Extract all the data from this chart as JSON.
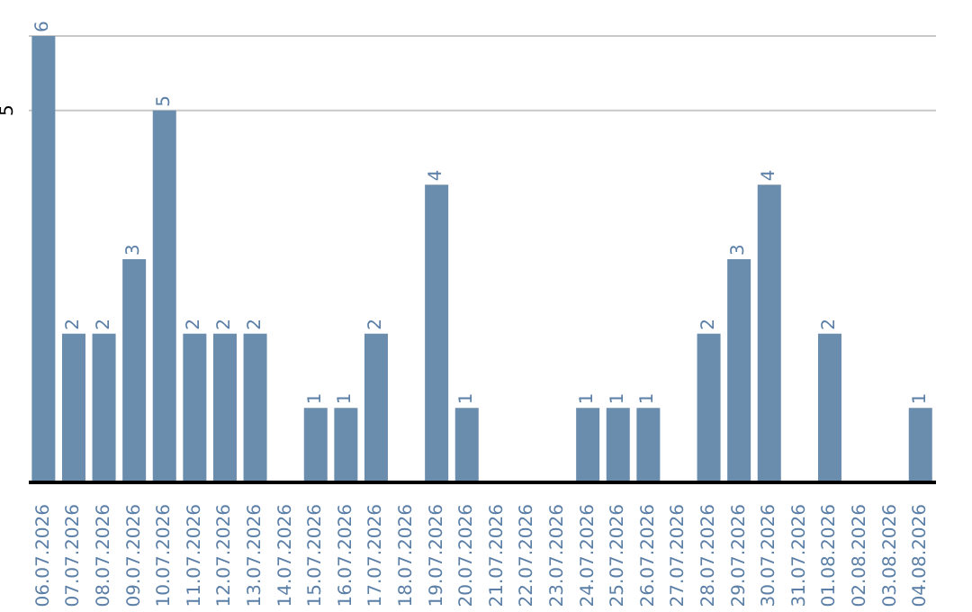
{
  "chart_data": {
    "type": "bar",
    "categories": [
      "06.07.2026",
      "07.07.2026",
      "08.07.2026",
      "09.07.2026",
      "10.07.2026",
      "11.07.2026",
      "12.07.2026",
      "13.07.2026",
      "14.07.2026",
      "15.07.2026",
      "16.07.2026",
      "17.07.2026",
      "18.07.2026",
      "19.07.2026",
      "20.07.2026",
      "21.07.2026",
      "22.07.2026",
      "23.07.2026",
      "24.07.2026",
      "25.07.2026",
      "26.07.2026",
      "27.07.2026",
      "28.07.2026",
      "29.07.2026",
      "30.07.2026",
      "31.07.2026",
      "01.08.2026",
      "02.08.2026",
      "03.08.2026",
      "04.08.2026"
    ],
    "values": [
      6,
      2,
      2,
      3,
      5,
      2,
      2,
      2,
      0,
      1,
      1,
      2,
      0,
      4,
      1,
      0,
      0,
      0,
      1,
      1,
      1,
      0,
      2,
      3,
      4,
      0,
      2,
      0,
      0,
      1
    ],
    "value_labels": [
      "6",
      "2",
      "2",
      "3",
      "5",
      "2",
      "2",
      "2",
      null,
      "1",
      "1",
      "2",
      null,
      "4",
      "1",
      null,
      null,
      null,
      "1",
      "1",
      "1",
      null,
      "2",
      "3",
      "4",
      null,
      "2",
      null,
      null,
      "1"
    ],
    "color": "#6a8cad",
    "ylim": [
      0,
      6
    ],
    "yticks": [
      5
    ],
    "grid": "y"
  }
}
